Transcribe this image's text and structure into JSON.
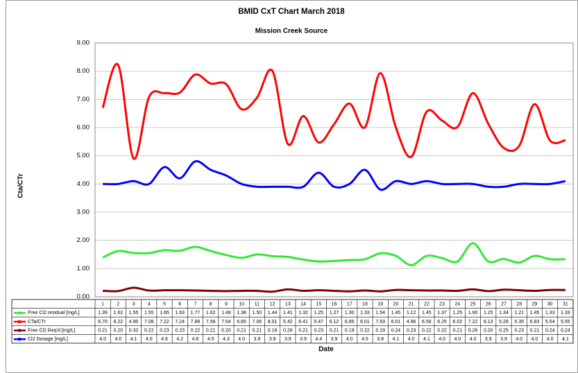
{
  "chart_data": {
    "type": "line",
    "title": "BMID CxT Chart March 2018",
    "subtitle": "Mission Creek Source",
    "y_label": "Cta/CTr",
    "x_label": "Date",
    "categories": [
      "1",
      "2",
      "3",
      "4",
      "5",
      "6",
      "7",
      "8",
      "9",
      "10",
      "11",
      "12",
      "13",
      "14",
      "15",
      "16",
      "17",
      "18",
      "19",
      "20",
      "21",
      "22",
      "23",
      "24",
      "25",
      "26",
      "27",
      "28",
      "29",
      "30",
      "31"
    ],
    "ylim": [
      0,
      9
    ],
    "yticks": [
      {
        "value": 0,
        "label": "0.00"
      },
      {
        "value": 1,
        "label": "1.00"
      },
      {
        "value": 2,
        "label": "2.00"
      },
      {
        "value": 3,
        "label": "3.00"
      },
      {
        "value": 4,
        "label": "4.00"
      },
      {
        "value": 5,
        "label": "5.00"
      },
      {
        "value": 6,
        "label": "6.00"
      },
      {
        "value": 7,
        "label": "7.00"
      },
      {
        "value": 8,
        "label": "8.00"
      },
      {
        "value": 9,
        "label": "9.00"
      }
    ],
    "grid": true,
    "series": [
      {
        "name": "Free Cl2 residual [mg/L]",
        "color": "#33e833",
        "values": [
          1.39,
          1.62,
          1.55,
          1.55,
          1.65,
          1.63,
          1.77,
          1.62,
          1.48,
          1.38,
          1.5,
          1.44,
          1.41,
          1.32,
          1.25,
          1.27,
          1.3,
          1.33,
          1.54,
          1.45,
          1.12,
          1.45,
          1.37,
          1.25,
          1.9,
          1.25,
          1.34,
          1.21,
          1.45,
          1.33,
          1.33
        ],
        "value_labels": [
          "1.39",
          "1.62",
          "1.55",
          "1.55",
          "1.65",
          "1.63",
          "1.77",
          "1.62",
          "1.48",
          "1.38",
          "1.50",
          "1.44",
          "1.41",
          "1.32",
          "1.25",
          "1.27",
          "1.30",
          "1.33",
          "1.54",
          "1.45",
          "1.12",
          "1.45",
          "1.37",
          "1.25",
          "1.90",
          "1.25",
          "1.34",
          "1.21",
          "1.45",
          "1.33",
          "1.33"
        ]
      },
      {
        "name": "CTa/CTr",
        "color": "#ff0000",
        "values": [
          6.7,
          8.22,
          4.9,
          7.08,
          7.22,
          7.24,
          7.88,
          7.56,
          7.54,
          6.65,
          7.06,
          8.01,
          5.42,
          6.41,
          5.47,
          6.12,
          6.85,
          6.01,
          7.93,
          6.01,
          4.96,
          6.56,
          6.25,
          6.02,
          7.22,
          6.13,
          5.28,
          5.35,
          6.83,
          5.54,
          5.55
        ],
        "value_labels": [
          "6.70",
          "8.22",
          "4.90",
          "7.08",
          "7.22",
          "7.24",
          "7.88",
          "7.56",
          "7.54",
          "6.65",
          "7.06",
          "8.01",
          "5.42",
          "6.41",
          "5.47",
          "6.12",
          "6.85",
          "6.01",
          "7.93",
          "6.01",
          "4.96",
          "6.56",
          "6.25",
          "6.02",
          "7.22",
          "6.13",
          "5.28",
          "5.35",
          "6.83",
          "5.54",
          "5.55"
        ]
      },
      {
        "name": "Free Cl2 Req'd [mg/L]",
        "color": "#800000",
        "values": [
          0.21,
          0.2,
          0.32,
          0.22,
          0.23,
          0.23,
          0.22,
          0.21,
          0.2,
          0.21,
          0.21,
          0.18,
          0.26,
          0.21,
          0.23,
          0.21,
          0.19,
          0.22,
          0.19,
          0.24,
          0.23,
          0.22,
          0.22,
          0.21,
          0.26,
          0.2,
          0.25,
          0.23,
          0.21,
          0.24,
          0.24
        ],
        "value_labels": [
          "0.21",
          "0.20",
          "0.32",
          "0.22",
          "0.23",
          "0.23",
          "0.22",
          "0.21",
          "0.20",
          "0.21",
          "0.21",
          "0.18",
          "0.26",
          "0.21",
          "0.23",
          "0.21",
          "0.19",
          "0.22",
          "0.19",
          "0.24",
          "0.23",
          "0.22",
          "0.22",
          "0.21",
          "0.26",
          "0.20",
          "0.25",
          "0.23",
          "0.21",
          "0.24",
          "0.24"
        ]
      },
      {
        "name": "Cl2 Dosage [mg/L]",
        "color": "#0000ff",
        "values": [
          4.0,
          4.0,
          4.1,
          4.0,
          4.6,
          4.2,
          4.8,
          4.5,
          4.3,
          4.0,
          3.9,
          3.9,
          3.9,
          3.9,
          4.4,
          3.9,
          4.0,
          4.5,
          3.8,
          4.1,
          4.0,
          4.1,
          4.0,
          4.0,
          4.0,
          3.9,
          3.9,
          4.0,
          4.0,
          4.0,
          4.1
        ],
        "value_labels": [
          "4.0",
          "4.0",
          "4.1",
          "4.0",
          "4.6",
          "4.2",
          "4.8",
          "4.5",
          "4.3",
          "4.0",
          "3.9",
          "3.9",
          "3.9",
          "3.9",
          "4.4",
          "3.9",
          "4.0",
          "4.5",
          "3.8",
          "4.1",
          "4.0",
          "4.1",
          "4.0",
          "4.0",
          "4.0",
          "3.9",
          "3.9",
          "4.0",
          "4.0",
          "4.0",
          "4.1"
        ]
      }
    ]
  }
}
